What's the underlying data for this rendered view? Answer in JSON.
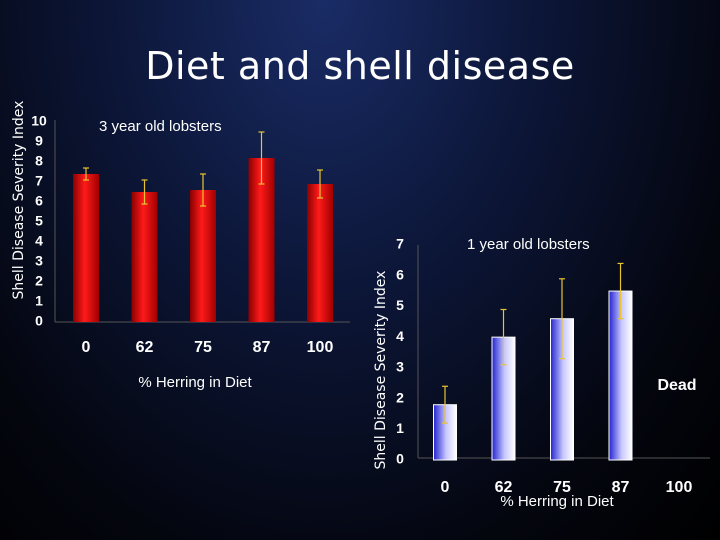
{
  "slide": {
    "title": "Diet and shell disease"
  },
  "chart_data": [
    {
      "type": "bar",
      "title": "3 year old lobsters",
      "xlabel": "% Herring in Diet",
      "ylabel": "Shell Disease Severity Index",
      "categories": [
        "0",
        "62",
        "75",
        "87",
        "100"
      ],
      "values": [
        7.4,
        6.5,
        6.6,
        8.2,
        6.9
      ],
      "error_bars": [
        0.3,
        0.6,
        0.8,
        1.3,
        0.7
      ],
      "ylim": [
        0,
        10
      ],
      "yticks": [
        "0",
        "1",
        "2",
        "3",
        "4",
        "5",
        "6",
        "7",
        "8",
        "9",
        "10"
      ],
      "bar_color": "#e00000",
      "error_color": "#e8c430"
    },
    {
      "type": "bar",
      "title": "1 year old lobsters",
      "xlabel": "% Herring in Diet",
      "ylabel": "Shell Disease Severity Index",
      "categories": [
        "0",
        "62",
        "75",
        "87",
        "100"
      ],
      "values": [
        1.8,
        4.0,
        4.6,
        5.5,
        null
      ],
      "error_bars": [
        0.6,
        0.9,
        1.3,
        0.9,
        null
      ],
      "ylim": [
        0,
        7
      ],
      "yticks": [
        "0",
        "1",
        "2",
        "3",
        "4",
        "5",
        "6",
        "7"
      ],
      "annotations": [
        "Dead"
      ],
      "bar_color": "#3a3ae8",
      "error_color": "#e8c430"
    }
  ]
}
